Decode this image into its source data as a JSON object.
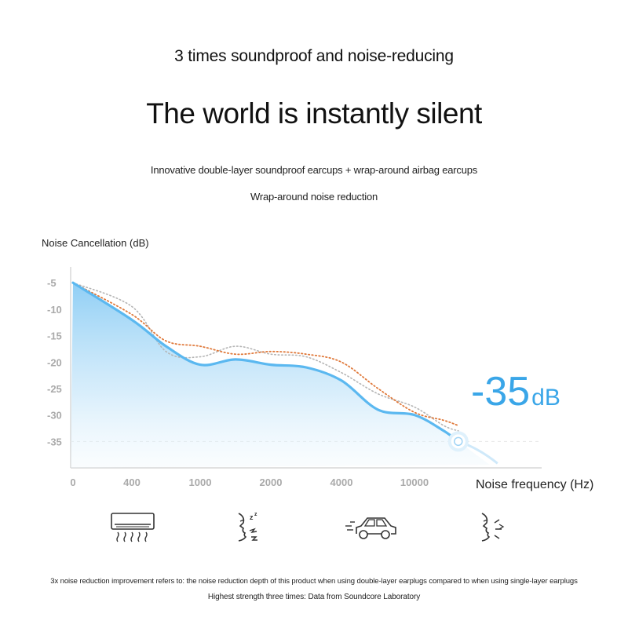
{
  "header": {
    "subtitle": "3 times soundproof and noise-reducing",
    "headline": "The world is instantly silent",
    "desc_line1": "Innovative double-layer soundproof earcups + wrap-around airbag earcups",
    "desc_line2": "Wrap-around noise reduction"
  },
  "chart_data": {
    "type": "line",
    "ylabel": "Noise Cancellation (dB)",
    "xlabel": "Noise frequency (Hz)",
    "x_tick_labels": [
      "0",
      "400",
      "1000",
      "2000",
      "4000",
      "10000"
    ],
    "y_tick_labels": [
      "-5",
      "-10",
      "-15",
      "-20",
      "-25",
      "-30",
      "-35"
    ],
    "y_ticks": [
      -5,
      -10,
      -15,
      -20,
      -25,
      -30,
      -35
    ],
    "ylim": [
      -40,
      -2
    ],
    "x_positions": [
      0,
      400,
      700,
      1000,
      1500,
      2000,
      3000,
      4000,
      7000,
      10000,
      14000,
      16000
    ],
    "x_tick_values": [
      0,
      400,
      1000,
      2000,
      4000,
      10000
    ],
    "series": [
      {
        "color": "#5bb8f0",
        "style": "solid",
        "values": [
          -5,
          -12,
          -17,
          -20.5,
          -19.5,
          -20.5,
          -21,
          -23.5,
          -29,
          -30,
          -33,
          -35
        ]
      },
      {
        "color": "#e07a3c",
        "style": "dotted",
        "values": [
          -5,
          -11,
          -16,
          -17,
          -18.5,
          -18,
          -18.5,
          -20,
          -25,
          -29.5,
          -31,
          -32
        ]
      },
      {
        "color": "#b5b5b5",
        "style": "dotted",
        "values": [
          -5,
          -9.5,
          -18,
          -19,
          -17,
          -18.5,
          -19,
          -22,
          -26,
          -28.5,
          -32,
          -33
        ]
      }
    ],
    "highlight": {
      "value": "-35",
      "unit": "dB"
    },
    "grid": false,
    "legend": "none"
  },
  "icons": [
    {
      "name": "air-conditioner-icon"
    },
    {
      "name": "snoring-icon"
    },
    {
      "name": "car-icon"
    },
    {
      "name": "speaking-icon"
    }
  ],
  "footer": {
    "note_line1": "3x noise reduction improvement refers to: the noise reduction depth of this product when using double-layer earplugs compared to when using single-layer earplugs",
    "note_line2": "Highest strength three times: Data from Soundcore Laboratory"
  }
}
